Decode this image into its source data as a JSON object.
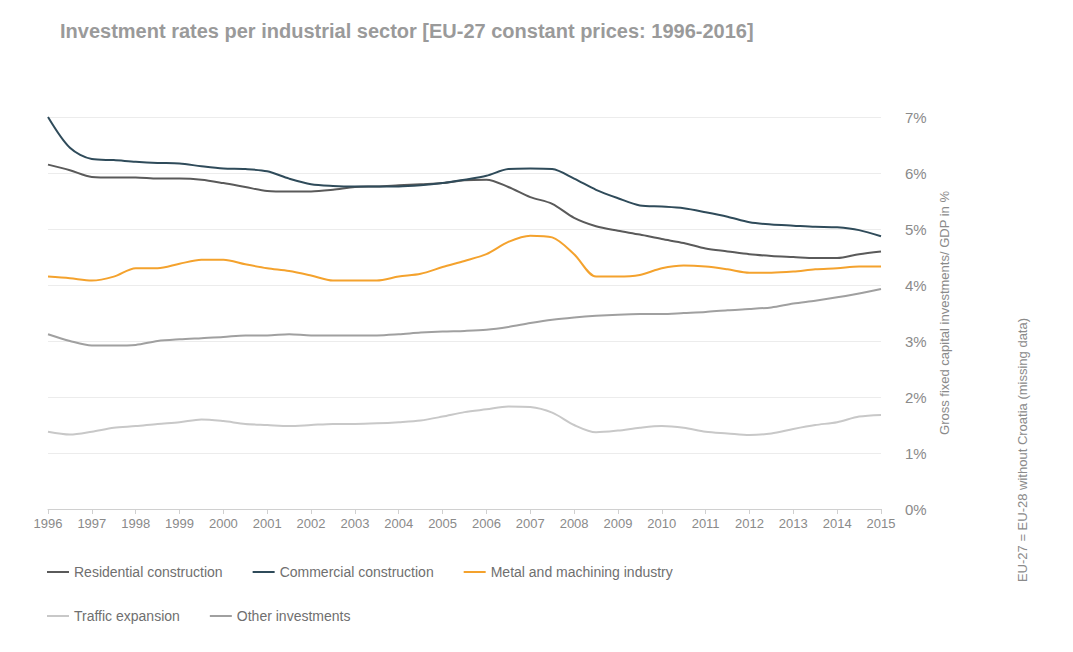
{
  "chart_data": {
    "type": "line",
    "title": "Investment rates per industrial sector [EU-27 constant prices: 1996-2016]",
    "ylabel": "Gross fixed capital investments/ GDP in %",
    "annotation": "EU-27 = EU-28 without Croatia (missing data)",
    "x": [
      1996,
      1996.5,
      1997,
      1997.5,
      1998,
      1998.5,
      1999,
      1999.5,
      2000,
      2000.5,
      2001,
      2001.5,
      2002,
      2002.5,
      2003,
      2003.5,
      2004,
      2004.5,
      2005,
      2005.5,
      2006,
      2006.5,
      2007,
      2007.5,
      2008,
      2008.5,
      2009,
      2009.5,
      2010,
      2010.5,
      2011,
      2011.5,
      2012,
      2012.5,
      2013,
      2013.5,
      2014,
      2014.5,
      2015
    ],
    "xlim": [
      1996,
      2015
    ],
    "xticks": [
      1996,
      1997,
      1998,
      1999,
      2000,
      2001,
      2002,
      2003,
      2004,
      2005,
      2006,
      2007,
      2008,
      2009,
      2010,
      2011,
      2012,
      2013,
      2014,
      2015
    ],
    "ylim": [
      0,
      7
    ],
    "yticks": [
      {
        "value": 0,
        "label": "0%"
      },
      {
        "value": 1,
        "label": "1%"
      },
      {
        "value": 2,
        "label": "2%"
      },
      {
        "value": 3,
        "label": "3%"
      },
      {
        "value": 4,
        "label": "4%"
      },
      {
        "value": 5,
        "label": "5%"
      },
      {
        "value": 6,
        "label": "6%"
      },
      {
        "value": 7,
        "label": "7%"
      }
    ],
    "grid": true,
    "legend": "bottom-left",
    "series": [
      {
        "name": "Residential construction",
        "color": "#5a5a5a",
        "values": [
          6.15,
          6.05,
          5.93,
          5.92,
          5.92,
          5.9,
          5.9,
          5.88,
          5.82,
          5.75,
          5.68,
          5.67,
          5.67,
          5.7,
          5.75,
          5.76,
          5.78,
          5.8,
          5.82,
          5.87,
          5.88,
          5.75,
          5.57,
          5.45,
          5.2,
          5.05,
          4.97,
          4.9,
          4.82,
          4.75,
          4.65,
          4.6,
          4.55,
          4.52,
          4.5,
          4.48,
          4.48,
          4.55,
          4.6
        ]
      },
      {
        "name": "Commercial construction",
        "color": "#2f4b5a",
        "values": [
          7.0,
          6.45,
          6.25,
          6.23,
          6.2,
          6.18,
          6.17,
          6.12,
          6.08,
          6.07,
          6.03,
          5.9,
          5.8,
          5.77,
          5.76,
          5.76,
          5.76,
          5.78,
          5.82,
          5.88,
          5.95,
          6.07,
          6.08,
          6.07,
          5.9,
          5.7,
          5.55,
          5.42,
          5.4,
          5.37,
          5.3,
          5.22,
          5.12,
          5.08,
          5.06,
          5.04,
          5.03,
          4.98,
          4.87
        ]
      },
      {
        "name": "Metal and machining industry",
        "color": "#f4a22d",
        "values": [
          4.15,
          4.12,
          4.08,
          4.15,
          4.3,
          4.3,
          4.38,
          4.45,
          4.45,
          4.37,
          4.3,
          4.25,
          4.17,
          4.08,
          4.08,
          4.08,
          4.15,
          4.2,
          4.32,
          4.43,
          4.55,
          4.77,
          4.88,
          4.85,
          4.55,
          4.15,
          4.15,
          4.18,
          4.3,
          4.35,
          4.33,
          4.28,
          4.22,
          4.22,
          4.24,
          4.28,
          4.3,
          4.33,
          4.33
        ]
      },
      {
        "name": "Traffic expansion",
        "color": "#c8c8c8",
        "values": [
          1.38,
          1.33,
          1.38,
          1.45,
          1.48,
          1.52,
          1.55,
          1.6,
          1.57,
          1.52,
          1.5,
          1.48,
          1.5,
          1.52,
          1.52,
          1.53,
          1.55,
          1.58,
          1.65,
          1.73,
          1.78,
          1.83,
          1.82,
          1.72,
          1.5,
          1.37,
          1.4,
          1.45,
          1.48,
          1.45,
          1.38,
          1.35,
          1.32,
          1.35,
          1.43,
          1.5,
          1.55,
          1.65,
          1.68
        ]
      },
      {
        "name": "Other investments",
        "color": "#a0a0a0",
        "values": [
          3.12,
          3.0,
          2.92,
          2.92,
          2.93,
          3.0,
          3.03,
          3.05,
          3.07,
          3.1,
          3.1,
          3.12,
          3.1,
          3.1,
          3.1,
          3.1,
          3.12,
          3.15,
          3.17,
          3.18,
          3.2,
          3.25,
          3.32,
          3.38,
          3.42,
          3.45,
          3.47,
          3.48,
          3.48,
          3.5,
          3.52,
          3.55,
          3.57,
          3.6,
          3.67,
          3.72,
          3.78,
          3.85,
          3.93
        ]
      }
    ]
  }
}
